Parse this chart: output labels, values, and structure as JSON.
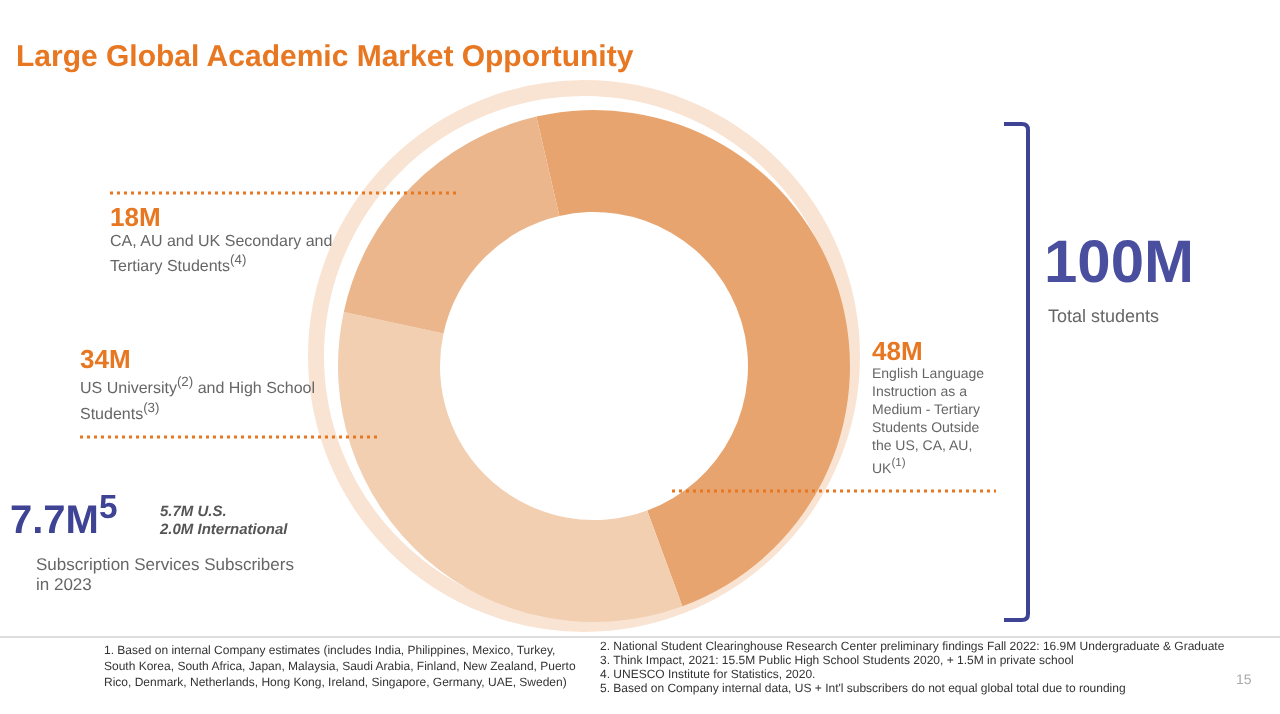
{
  "chart_data": {
    "type": "donut",
    "title": "Large Global Academic Market Opportunity",
    "categories": [
      "English Language Instruction as a Medium - Tertiary Students Outside the US, CA, AU, UK$^{(1)}$",
      "US University$^{(2)}$ and High School Students$^{(3)}$",
      "CA, AU and UK Secondary and Tertiary Students$^{(4)}$"
    ],
    "values": [
      48,
      34,
      18
    ],
    "value_labels": [
      "48M",
      "34M",
      "18M"
    ],
    "colors": [
      "#e8a46e",
      "#f2cfb1",
      "#ebb68b"
    ],
    "annotations": [
      "7.7M$^{5}$",
      "5.7M U.S.",
      "2.0M International",
      "Subscription Services Subscribers in 2023",
      "100M",
      "Total students",
      "1. Based on internal Company estimates (includes India, Philippines, Mexico, Turkey, South Korea, South Africa, Japan, Malaysia, Saudi Arabia, Finland, New Zealand, Puerto Rico, Denmark, Netherlands, Hong Kong, Ireland, Singapore, Germany, UAE, Sweden)",
      "2. National Student Clearinghouse Research Center preliminary findings Fall 2022: 16.9M Undergraduate & Graduate",
      "3. Think Impact, 2021: 15.5M Public High School Students 2020, + 1.5M in private school",
      "4. UNESCO Institute for Statistics, 2020.",
      "5. Based on Company internal data, US + Int'l subscribers do not equal global total due to rounding",
      "15"
    ]
  }
}
